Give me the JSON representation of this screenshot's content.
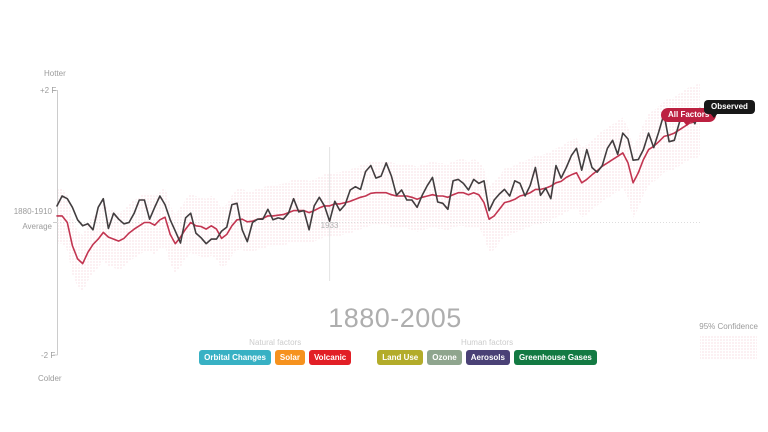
{
  "title": "1880-2005",
  "axis": {
    "hotter": "Hotter",
    "colder": "Colder",
    "top_tick": "+2 F",
    "bottom_tick": "-2 F",
    "baseline_line1": "1880-1910",
    "baseline_line2": "Average"
  },
  "year_marker": {
    "year": 1933,
    "label": "1933"
  },
  "badges": {
    "all_factors": "All Factors",
    "observed": "Observed"
  },
  "confidence": {
    "label": "95% Confidence"
  },
  "colors": {
    "observed_line": "#423d3f",
    "all_factors_line": "#c23551",
    "all_factors_badge": "#bc2040",
    "observed_badge": "#181818",
    "band_dot": "#f2ccd4",
    "axis": "#cccccc",
    "baseline": "#dddddd",
    "year_marker_line": "#e2e2e2"
  },
  "legend": {
    "groups": [
      {
        "label": "Natural factors",
        "items": [
          {
            "label": "Orbital Changes",
            "color": "#38b1c4"
          },
          {
            "label": "Solar",
            "color": "#f6921e"
          },
          {
            "label": "Volcanic",
            "color": "#e21f26"
          }
        ]
      },
      {
        "label": "Human factors",
        "items": [
          {
            "label": "Land Use",
            "color": "#b3ac2a"
          },
          {
            "label": "Ozone",
            "color": "#8fa58e"
          },
          {
            "label": "Aerosols",
            "color": "#4a4176"
          },
          {
            "label": "Greenhouse Gases",
            "color": "#137a43"
          }
        ]
      }
    ]
  },
  "chart_data": {
    "type": "line",
    "title": "1880-2005",
    "x_start_year": 1880,
    "x_end_year": 2005,
    "y_unit": "degrees F vs 1880-1910 average",
    "ylim": [
      -2,
      2
    ],
    "grid": false,
    "series": [
      {
        "name": "Observed",
        "values": [
          0.25,
          0.4,
          0.36,
          0.23,
          0.04,
          -0.05,
          -0.02,
          -0.11,
          0.23,
          0.36,
          -0.09,
          0.14,
          0.05,
          -0.02,
          0.0,
          0.14,
          0.34,
          0.34,
          0.05,
          0.23,
          0.4,
          0.27,
          0.04,
          -0.13,
          -0.31,
          0.07,
          0.14,
          -0.16,
          -0.23,
          -0.32,
          -0.25,
          -0.25,
          -0.13,
          -0.07,
          0.27,
          0.29,
          -0.11,
          -0.29,
          0.0,
          0.05,
          0.05,
          0.2,
          0.04,
          0.07,
          0.05,
          0.14,
          0.36,
          0.16,
          0.18,
          -0.11,
          0.25,
          0.38,
          0.25,
          0.02,
          0.32,
          0.18,
          0.27,
          0.49,
          0.54,
          0.5,
          0.77,
          0.86,
          0.67,
          0.7,
          0.9,
          0.7,
          0.41,
          0.49,
          0.34,
          0.34,
          0.23,
          0.41,
          0.56,
          0.68,
          0.31,
          0.29,
          0.2,
          0.63,
          0.65,
          0.59,
          0.49,
          0.65,
          0.59,
          0.63,
          0.18,
          0.34,
          0.43,
          0.5,
          0.4,
          0.63,
          0.59,
          0.4,
          0.56,
          0.83,
          0.41,
          0.52,
          0.36,
          0.86,
          0.67,
          0.83,
          1.01,
          1.12,
          0.79,
          1.1,
          0.83,
          0.76,
          0.86,
          1.12,
          1.24,
          1.03,
          1.35,
          1.26,
          0.94,
          0.95,
          1.1,
          1.35,
          1.13,
          1.37,
          1.64,
          1.22,
          1.24,
          1.51,
          1.67,
          1.66,
          1.49,
          1.72
        ]
      },
      {
        "name": "All Factors",
        "values": [
          0.1,
          0.1,
          0.0,
          -0.35,
          -0.55,
          -0.62,
          -0.45,
          -0.33,
          -0.25,
          -0.15,
          -0.22,
          -0.25,
          -0.28,
          -0.24,
          -0.16,
          -0.1,
          -0.05,
          0.0,
          0.0,
          -0.04,
          0.04,
          0.08,
          -0.18,
          -0.32,
          -0.22,
          -0.1,
          0.0,
          -0.05,
          -0.06,
          -0.1,
          -0.05,
          -0.1,
          -0.24,
          -0.18,
          -0.05,
          0.04,
          0.05,
          0.01,
          0.02,
          0.05,
          0.06,
          0.1,
          0.1,
          0.11,
          0.12,
          0.15,
          0.18,
          0.18,
          0.18,
          0.15,
          0.18,
          0.22,
          0.25,
          0.25,
          0.28,
          0.28,
          0.3,
          0.32,
          0.35,
          0.38,
          0.4,
          0.44,
          0.45,
          0.45,
          0.45,
          0.42,
          0.4,
          0.4,
          0.4,
          0.38,
          0.35,
          0.38,
          0.4,
          0.42,
          0.4,
          0.4,
          0.38,
          0.42,
          0.45,
          0.45,
          0.42,
          0.45,
          0.42,
          0.3,
          0.05,
          0.1,
          0.2,
          0.3,
          0.32,
          0.35,
          0.4,
          0.42,
          0.45,
          0.5,
          0.5,
          0.52,
          0.55,
          0.6,
          0.62,
          0.68,
          0.72,
          0.75,
          0.6,
          0.65,
          0.72,
          0.78,
          0.85,
          0.9,
          0.95,
          1.0,
          1.05,
          0.9,
          0.6,
          0.75,
          0.95,
          1.1,
          1.15,
          1.22,
          1.3,
          1.32,
          1.35,
          1.4,
          1.45,
          1.5,
          1.52,
          1.55
        ]
      }
    ],
    "confidence_band": {
      "label": "95% Confidence",
      "around_series": "All Factors",
      "halfwidth_start": 0.42,
      "halfwidth_end": 0.55
    }
  }
}
